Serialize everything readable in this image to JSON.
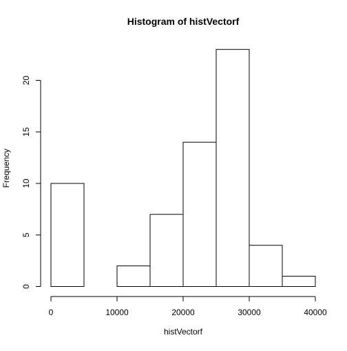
{
  "chart_data": {
    "type": "bar",
    "title": "Histogram of histVectorf",
    "xlabel": "histVectorf",
    "ylabel": "Frequency",
    "bins": [
      {
        "start": 0,
        "end": 5000,
        "count": 10
      },
      {
        "start": 5000,
        "end": 10000,
        "count": 0
      },
      {
        "start": 10000,
        "end": 15000,
        "count": 2
      },
      {
        "start": 15000,
        "end": 20000,
        "count": 7
      },
      {
        "start": 20000,
        "end": 25000,
        "count": 14
      },
      {
        "start": 25000,
        "end": 30000,
        "count": 23
      },
      {
        "start": 30000,
        "end": 35000,
        "count": 4
      },
      {
        "start": 35000,
        "end": 40000,
        "count": 1
      }
    ],
    "xlim": [
      0,
      40000
    ],
    "ylim": [
      0,
      23
    ],
    "x_ticks": [
      0,
      10000,
      20000,
      30000,
      40000
    ],
    "x_tick_labels": [
      "0",
      "10000",
      "20000",
      "30000",
      "40000"
    ],
    "y_ticks": [
      0,
      5,
      10,
      15,
      20
    ],
    "y_tick_labels": [
      "0",
      "5",
      "10",
      "15",
      "20"
    ],
    "grid": false,
    "legend": "none",
    "colors": {
      "bar_fill": "#ffffff",
      "bar_stroke": "#000000",
      "text": "#000000"
    }
  }
}
